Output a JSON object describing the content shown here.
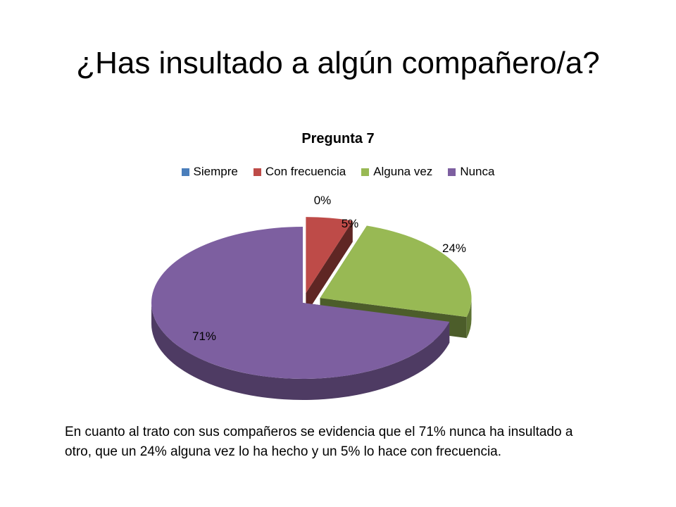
{
  "slide": {
    "title": "¿Has insultado a algún compañero/a?",
    "caption": "En cuanto al trato con sus compañeros se evidencia que el 71% nunca ha insultado a otro, que un 24% alguna vez lo ha hecho y un 5% lo hace con frecuencia."
  },
  "chart_data": {
    "type": "pie",
    "style": "3d-exploded",
    "title": "Pregunta 7",
    "legend_position": "top",
    "categories": [
      "Siempre",
      "Con frecuencia",
      "Alguna vez",
      "Nunca"
    ],
    "values": [
      0,
      5,
      24,
      71
    ],
    "data_labels": [
      "0%",
      "5%",
      "24%",
      "71%"
    ],
    "colors": [
      "#4a7ebb",
      "#be4b48",
      "#98b954",
      "#7d5fa0"
    ]
  }
}
